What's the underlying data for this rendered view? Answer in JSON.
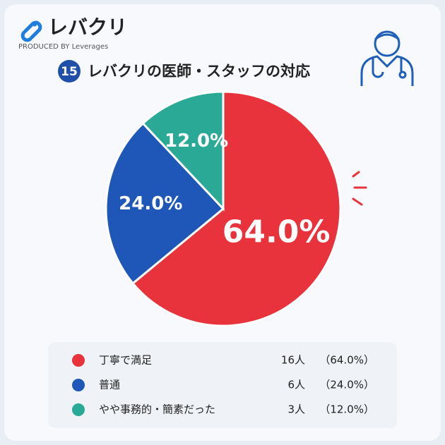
{
  "header": {
    "logo": "レバクリ",
    "produced_by": "PRODUCED BY Leverages",
    "number": "15",
    "title": "レバクリの医師・スタッフの対応"
  },
  "chart_data": {
    "type": "pie",
    "categories": [
      "丁寧で満足",
      "普通",
      "やや事務的・簡素だった"
    ],
    "values": [
      64,
      24,
      12
    ],
    "value_labels": [
      "64.0%",
      "24.0%",
      "12.0%"
    ],
    "colors": [
      "#e8323c",
      "#1f57b8",
      "#2aa996"
    ],
    "count_labels": [
      "16人",
      "6人",
      "3人"
    ],
    "legend_value_labels": [
      "（64.0%）",
      "（24.0%）",
      "（12.0%）"
    ]
  }
}
